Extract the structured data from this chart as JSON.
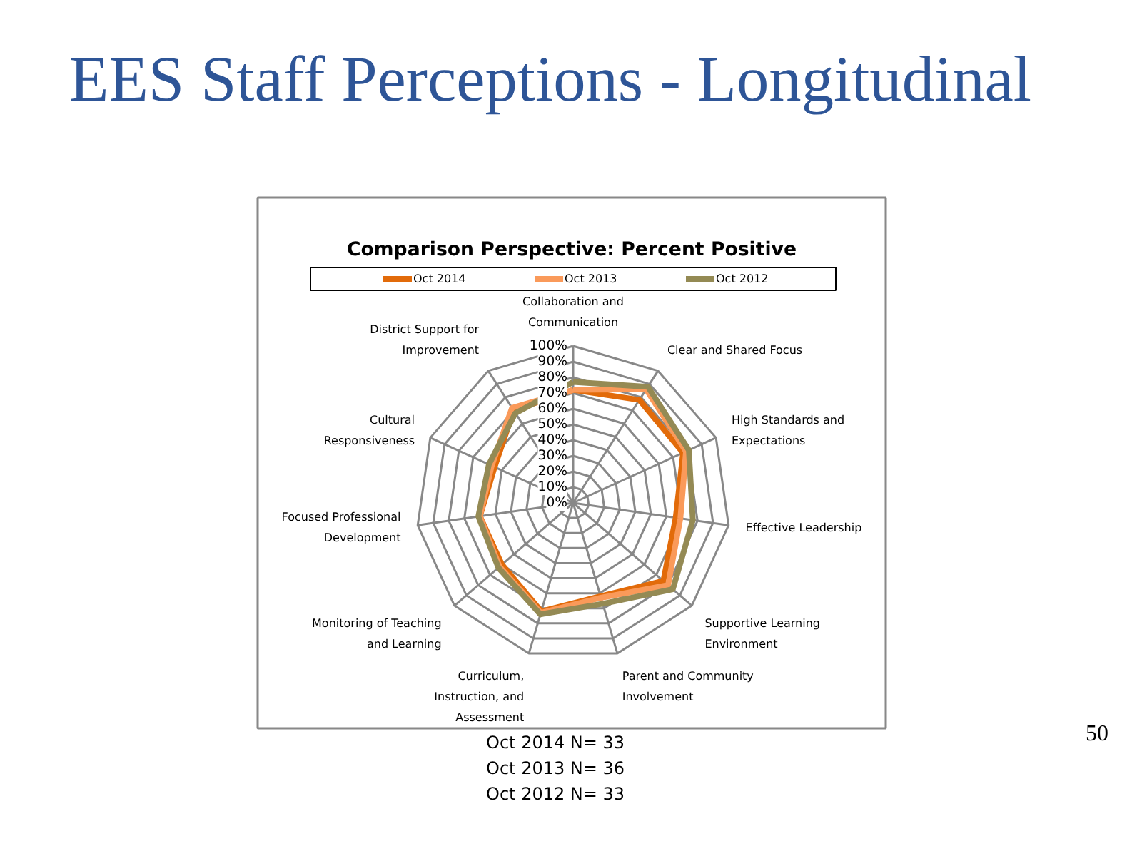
{
  "chart_data": {
    "type": "radar",
    "title": "EES Staff Perceptions - Longitudinal",
    "subtitle": "Comparison Perspective: Percent Positive",
    "categories": [
      "Collaboration and Communication",
      "Clear and Shared Focus",
      "High Standards and Expectations",
      "Effective Leadership",
      "Supportive Learning Environment",
      "Parent and Community Involvement",
      "Curriculum, Instruction, and Assessment",
      "Monitoring of Teaching and Learning",
      "Focused Professional Development",
      "Cultural Responsiveness",
      "District Support for Improvement"
    ],
    "series": [
      {
        "name": "Oct 2014",
        "color": "#e26b0a",
        "values": [
          72,
          78,
          77,
          66,
          76,
          62,
          72,
          60,
          60,
          55,
          70
        ]
      },
      {
        "name": "Oct 2013",
        "color": "#fa9a5a",
        "values": [
          72,
          86,
          79,
          69,
          80,
          63,
          73,
          62,
          60,
          57,
          72
        ]
      },
      {
        "name": "Oct 2012",
        "color": "#948a54",
        "values": [
          77,
          88,
          81,
          77,
          84,
          67,
          74,
          63,
          61,
          59,
          68
        ]
      }
    ],
    "ylim": [
      0,
      100
    ],
    "yticks": [
      {
        "value": 0,
        "label": "0%"
      },
      {
        "value": 10,
        "label": "10%"
      },
      {
        "value": 20,
        "label": "20%"
      },
      {
        "value": 30,
        "label": "30%"
      },
      {
        "value": 40,
        "label": "40%"
      },
      {
        "value": 50,
        "label": "50%"
      },
      {
        "value": 60,
        "label": "60%"
      },
      {
        "value": 70,
        "label": "70%"
      },
      {
        "value": 80,
        "label": "80%"
      },
      {
        "value": 90,
        "label": "90%"
      },
      {
        "value": 100,
        "label": "100%"
      }
    ],
    "grid": true,
    "legend": "top",
    "line_style": "solid",
    "annotations": [
      "Oct 2014  N=  33",
      "Oct 2013  N=  36",
      "Oct 2012  N=  33",
      "50"
    ]
  }
}
